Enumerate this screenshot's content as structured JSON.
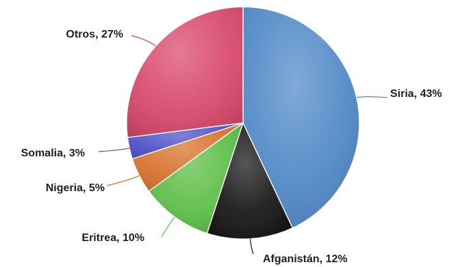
{
  "chart_data": {
    "type": "pie",
    "title": "",
    "slices": [
      {
        "label": "Siria",
        "value": 43,
        "display": "Siria, 43%",
        "color": "#4f88c6"
      },
      {
        "label": "Afganistán",
        "value": 12,
        "display": "Afganistán, 12%",
        "color": "#141414"
      },
      {
        "label": "Eritrea",
        "value": 10,
        "display": "Eritrea, 10%",
        "color": "#5bbd45"
      },
      {
        "label": "Nigeria",
        "value": 5,
        "display": "Nigeria, 5%",
        "color": "#d8702a"
      },
      {
        "label": "Somalia",
        "value": 3,
        "display": "Somalia, 3%",
        "color": "#4d4fc7"
      },
      {
        "label": "Otros",
        "value": 27,
        "display": "Otros, 27%",
        "color": "#d9476b"
      }
    ],
    "legend": "none",
    "labels": "outside with leader lines"
  }
}
